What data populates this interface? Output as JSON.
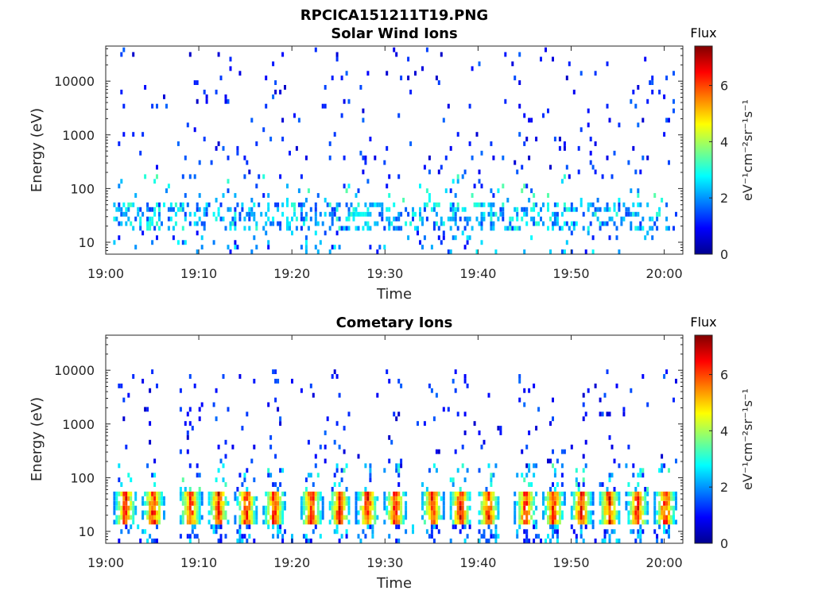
{
  "figure": {
    "title": "RPCICA151211T19.PNG"
  },
  "chart_data": [
    {
      "type": "heatmap",
      "title": "Solar Wind Ions",
      "xlabel": "Time",
      "ylabel": "Energy (eV)",
      "yscale": "log",
      "x_range": [
        "19:00",
        "20:02"
      ],
      "y_range": [
        6,
        45000
      ],
      "x_ticks": [
        "19:00",
        "19:10",
        "19:20",
        "19:30",
        "19:40",
        "19:50",
        "20:00"
      ],
      "y_ticks": [
        "10",
        "100",
        "1000",
        "10000"
      ],
      "y_tick_values": [
        10,
        100,
        1000,
        10000
      ],
      "colorbar": {
        "title": "Flux",
        "label": "eV⁻¹cm⁻²sr⁻¹s⁻¹",
        "range": [
          0,
          7.4
        ],
        "ticks": [
          "0",
          "2",
          "4",
          "6"
        ],
        "tick_values": [
          0,
          2,
          4,
          6
        ],
        "colormap": "jet"
      },
      "features": [
        {
          "description": "sparse low-flux speckle",
          "energy_range": [
            150,
            40000
          ],
          "flux": 0.5
        },
        {
          "description": "low-energy band",
          "energy_range": [
            15,
            45
          ],
          "flux": 2.5,
          "peak_flux": 4.5
        }
      ]
    },
    {
      "type": "heatmap",
      "title": "Cometary Ions",
      "xlabel": "Time",
      "ylabel": "Energy (eV)",
      "yscale": "log",
      "x_range": [
        "19:00",
        "20:02"
      ],
      "y_range": [
        6,
        45000
      ],
      "x_ticks": [
        "19:00",
        "19:10",
        "19:20",
        "19:30",
        "19:40",
        "19:50",
        "20:00"
      ],
      "y_ticks": [
        "10",
        "100",
        "1000",
        "10000"
      ],
      "y_tick_values": [
        10,
        100,
        1000,
        10000
      ],
      "colorbar": {
        "title": "Flux",
        "label": "eV⁻¹cm⁻²sr⁻¹s⁻¹",
        "range": [
          0,
          7.4
        ],
        "ticks": [
          "0",
          "2",
          "4",
          "6"
        ],
        "tick_values": [
          0,
          2,
          4,
          6
        ],
        "colormap": "jet"
      },
      "features": [
        {
          "description": "sparse low-flux speckle",
          "energy_range": [
            150,
            10000
          ],
          "flux": 0.5
        },
        {
          "description": "periodic bursts",
          "energy_range": [
            13,
            50
          ],
          "flux": 5.5,
          "peak_flux": 7.2,
          "burst_times": [
            "19:02",
            "19:05",
            "19:09",
            "19:12",
            "19:15",
            "19:18",
            "19:22",
            "19:25",
            "19:28",
            "19:31",
            "19:35",
            "19:38",
            "19:41",
            "19:45",
            "19:48",
            "19:51",
            "19:54",
            "19:57",
            "20:00"
          ]
        }
      ]
    }
  ]
}
